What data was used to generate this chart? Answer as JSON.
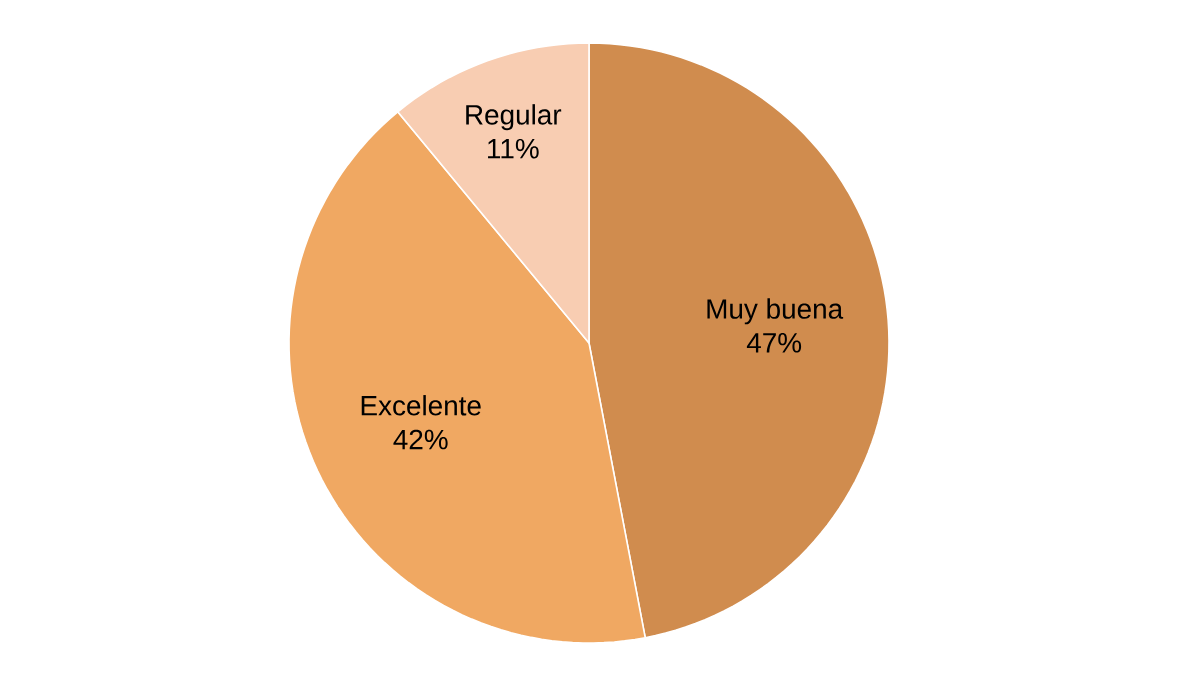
{
  "chart_data": {
    "type": "pie",
    "categories": [
      "Muy buena",
      "Excelente",
      "Regular"
    ],
    "values": [
      47,
      42,
      11
    ],
    "value_labels": [
      "47%",
      "42%",
      "11%"
    ],
    "colors": [
      "#d08c4e",
      "#f0a862",
      "#f8cdb2"
    ]
  }
}
